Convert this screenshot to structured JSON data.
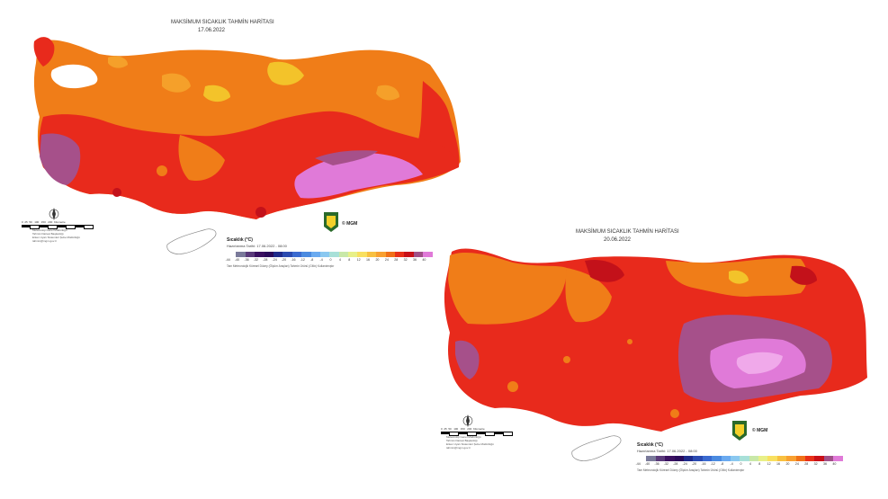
{
  "colors": {
    "orange": "#f07d18",
    "orange_light": "#f5a02a",
    "yellow": "#f3c32a",
    "red": "#e82a1c",
    "dark_red": "#c3111a",
    "violet": "#a6508a",
    "pink": "#e07ad8",
    "pink_light": "#f0a9ea"
  },
  "maps": [
    {
      "title": "MAKSİMUM SICAKLIK TAHMİN HARİTASI",
      "date": "17.06.2022",
      "legend_title": "Sıcaklık (°C)",
      "legend_sub": "Hazırlanma Tarihi: 17.06.2022 - 08:00",
      "legend_note": "Tam Meteorolojik Küresel Düzey (Ölçüm Araçları) Tahmin Ürünü (GMx) Kullanılmıştır",
      "mgm": "© MGM",
      "scale_labels": [
        "-44",
        "-40",
        "-36",
        "-32",
        "-28",
        "-24",
        "-20",
        "-16",
        "-12",
        "-8",
        "-4",
        "0",
        "4",
        "8",
        "12",
        "16",
        "20",
        "24",
        "28",
        "32",
        "36",
        "40"
      ],
      "credits": [
        "Meteoroloji Genel Müdürlüğü",
        "Tahmin Dairesi Başkanlığı",
        "Erken Uyarı Sistemleri Şube Müdürlüğü",
        "tahmin@mgm.gov.tr"
      ],
      "scalebar_labels": [
        "0",
        "25",
        "50",
        "100",
        "150",
        "200",
        "Kilometre"
      ]
    },
    {
      "title": "MAKSİMUM SICAKLIK TAHMİN HARİTASI",
      "date": "20.06.2022",
      "legend_title": "Sıcaklık (°C)",
      "legend_sub": "Hazırlanma Tarihi: 17.06.2022 - 08:00",
      "legend_note": "Tam Meteorolojik Küresel Düzey (Ölçüm Araçları) Tahmin Ürünü (GMx) Kullanılmıştır",
      "mgm": "© MGM",
      "scale_labels": [
        "-44",
        "-40",
        "-36",
        "-32",
        "-28",
        "-24",
        "-20",
        "-16",
        "-12",
        "-8",
        "-4",
        "0",
        "4",
        "8",
        "12",
        "16",
        "20",
        "24",
        "28",
        "32",
        "36",
        "40"
      ],
      "credits": [
        "Meteoroloji Genel Müdürlüğü",
        "Tahmin Dairesi Başkanlığı",
        "Erken Uyarı Sistemleri Şube Müdürlüğü",
        "tahmin@mgm.gov.tr"
      ],
      "scalebar_labels": [
        "0",
        "25",
        "50",
        "100",
        "150",
        "200",
        "Kilometre"
      ]
    }
  ],
  "scale_colors": [
    "#ffffff",
    "#7a7a9a",
    "#5a3a7a",
    "#3a1060",
    "#2a0a5a",
    "#1e2a8a",
    "#2a4ab0",
    "#3a6ad0",
    "#4a8ae0",
    "#6aaaf0",
    "#8ac8f0",
    "#a8e0d8",
    "#c8e8a8",
    "#e8f088",
    "#f8e060",
    "#f8c040",
    "#f8a030",
    "#f07018",
    "#e83018",
    "#c81018",
    "#a05088",
    "#e07ad8"
  ]
}
